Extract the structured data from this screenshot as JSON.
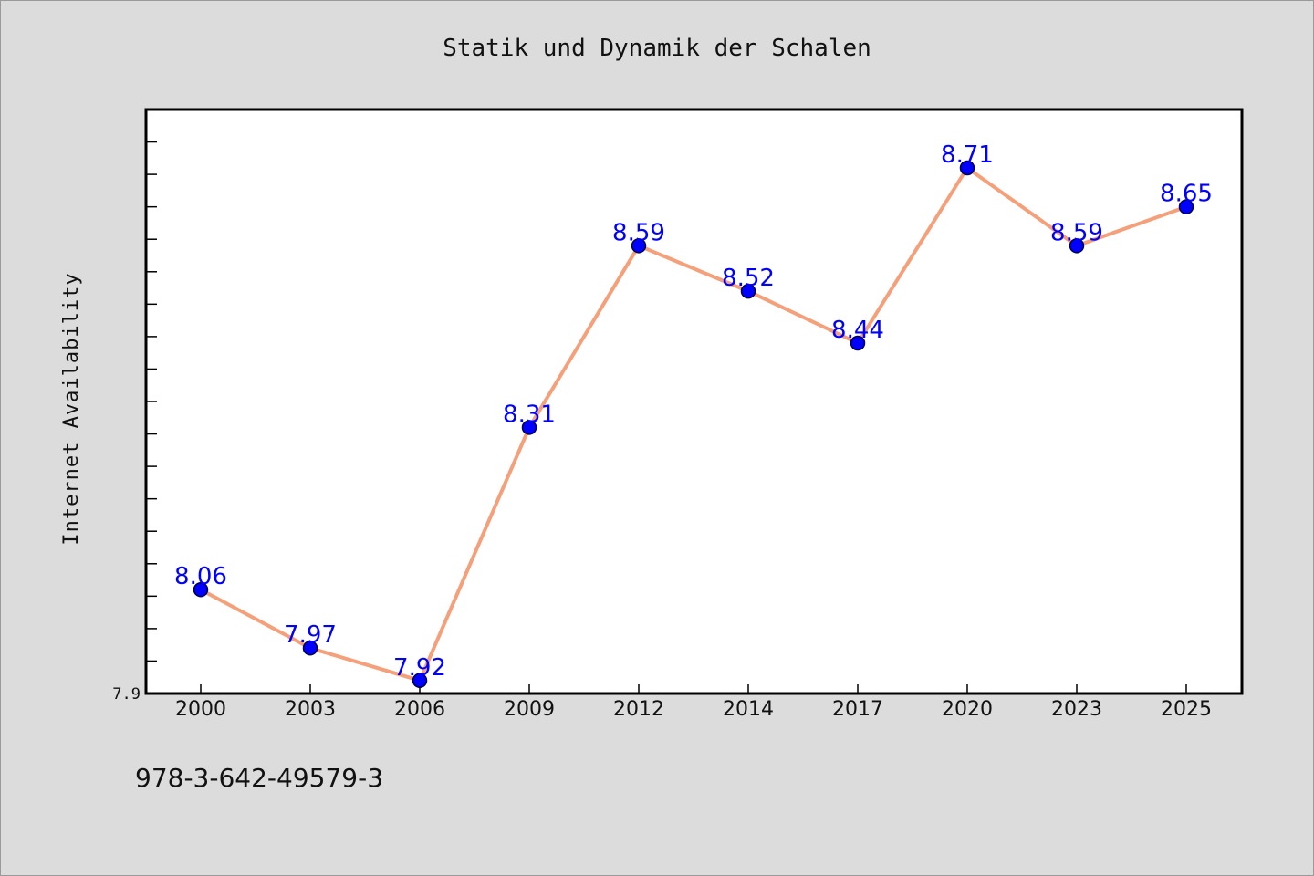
{
  "chart_data": {
    "type": "line",
    "title": "Statik und Dynamik der Schalen",
    "xlabel": "",
    "ylabel": "Internet Availability",
    "categories": [
      "2000",
      "2003",
      "2006",
      "2009",
      "2012",
      "2014",
      "2017",
      "2020",
      "2023",
      "2025"
    ],
    "series": [
      {
        "values": [
          8.06,
          7.97,
          7.92,
          8.31,
          8.59,
          8.52,
          8.44,
          8.71,
          8.59,
          8.65
        ],
        "labels": [
          "8.06",
          "7.97",
          "7.92",
          "8.31",
          "8.59",
          "8.52",
          "8.44",
          "8.71",
          "8.59",
          "8.65"
        ],
        "line_color": "#f4a07a",
        "marker_color": "#0000ff"
      }
    ],
    "ylim": [
      7.9,
      8.8
    ],
    "yticks_labeled": [
      "7.9"
    ],
    "grid": false,
    "legend": "none"
  },
  "footer": {
    "isbn": "978-3-642-49579-3"
  }
}
